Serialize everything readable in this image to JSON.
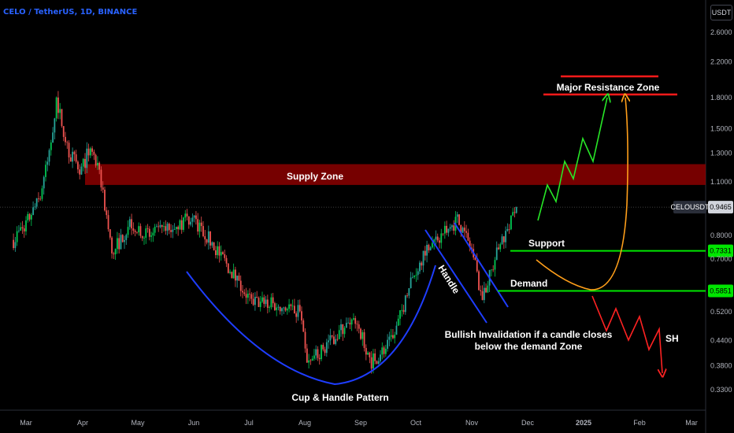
{
  "header": {
    "title": "CELO / TetherUS, 1D, BINANCE",
    "unit": "USDT"
  },
  "colors": {
    "background": "#000000",
    "up_candle": "#26a69a",
    "up_candle_bright": "#00c853",
    "down_candle": "#ef5350",
    "supply_zone": "#8b0000",
    "support_line": "#00e600",
    "resistance_line": "#ff1a1a",
    "pattern_curve": "#1e3dff",
    "orange_path": "#ff9f1a",
    "green_path": "#27e627",
    "red_path": "#ff2222",
    "axis_text": "#b2b5be"
  },
  "chart_data": {
    "type": "candlestick",
    "y_scale": "log",
    "ylim": [
      0.3,
      3.0
    ],
    "x_tick_labels": [
      "Mar",
      "Apr",
      "May",
      "Jun",
      "Jul",
      "Aug",
      "Sep",
      "Oct",
      "Nov",
      "Dec",
      "2025",
      "Feb",
      "Mar"
    ],
    "y_tick_labels": [
      "2.6000",
      "2.2000",
      "1.8000",
      "1.5000",
      "1.3000",
      "1.1000",
      "0.8000",
      "0.7000",
      "0.5200",
      "0.4400",
      "0.3800",
      "0.3300"
    ],
    "y_tick_values": [
      2.6,
      2.2,
      1.8,
      1.5,
      1.3,
      1.1,
      0.8,
      0.7,
      0.52,
      0.44,
      0.38,
      0.33
    ],
    "price_label": {
      "symbol": "CELOUSDT",
      "value": "0.9465",
      "price": 0.9465
    },
    "level_labels": [
      {
        "value": "0.7331",
        "price": 0.7331
      },
      {
        "value": "0.5851",
        "price": 0.5851
      }
    ],
    "zones": [
      {
        "name": "Supply Zone",
        "low": 1.08,
        "high": 1.22
      }
    ],
    "levels": [
      {
        "name": "Support",
        "price": 0.7331
      },
      {
        "name": "Demand",
        "price": 0.5851
      },
      {
        "name": "Major Resistance Zone",
        "price": 1.85
      }
    ],
    "annotations": [
      "Supply Zone",
      "Major Resistance Zone",
      "Support",
      "Demand",
      "Handle",
      "Cup & Handle Pattern",
      "Bullish Invalidation if a candle closes",
      "below the demand Zone",
      "SH"
    ],
    "price_path": [
      {
        "date": "2024-02-23",
        "close": 0.78
      },
      {
        "date": "2024-03-01",
        "close": 0.86
      },
      {
        "date": "2024-03-08",
        "close": 0.98
      },
      {
        "date": "2024-03-11",
        "close": 1.12
      },
      {
        "date": "2024-03-14",
        "close": 1.3
      },
      {
        "date": "2024-03-18",
        "close": 1.78
      },
      {
        "date": "2024-03-25",
        "close": 1.3
      },
      {
        "date": "2024-04-01",
        "close": 1.18
      },
      {
        "date": "2024-04-06",
        "close": 1.35
      },
      {
        "date": "2024-04-12",
        "close": 1.1
      },
      {
        "date": "2024-04-18",
        "close": 0.72
      },
      {
        "date": "2024-04-28",
        "close": 0.86
      },
      {
        "date": "2024-05-10",
        "close": 0.8
      },
      {
        "date": "2024-05-22",
        "close": 0.84
      },
      {
        "date": "2024-06-01",
        "close": 0.89
      },
      {
        "date": "2024-06-10",
        "close": 0.8
      },
      {
        "date": "2024-06-22",
        "close": 0.67
      },
      {
        "date": "2024-07-05",
        "close": 0.55
      },
      {
        "date": "2024-07-20",
        "close": 0.54
      },
      {
        "date": "2024-08-01",
        "close": 0.52
      },
      {
        "date": "2024-08-05",
        "close": 0.38
      },
      {
        "date": "2024-08-20",
        "close": 0.45
      },
      {
        "date": "2024-09-01",
        "close": 0.5
      },
      {
        "date": "2024-09-10",
        "close": 0.39
      },
      {
        "date": "2024-09-22",
        "close": 0.44
      },
      {
        "date": "2024-10-01",
        "close": 0.6
      },
      {
        "date": "2024-10-10",
        "close": 0.74
      },
      {
        "date": "2024-10-22",
        "close": 0.82
      },
      {
        "date": "2024-10-28",
        "close": 0.88
      },
      {
        "date": "2024-11-05",
        "close": 0.74
      },
      {
        "date": "2024-11-11",
        "close": 0.56
      },
      {
        "date": "2024-11-20",
        "close": 0.74
      },
      {
        "date": "2024-11-26",
        "close": 0.84
      },
      {
        "date": "2024-11-30",
        "close": 0.9465
      }
    ]
  }
}
